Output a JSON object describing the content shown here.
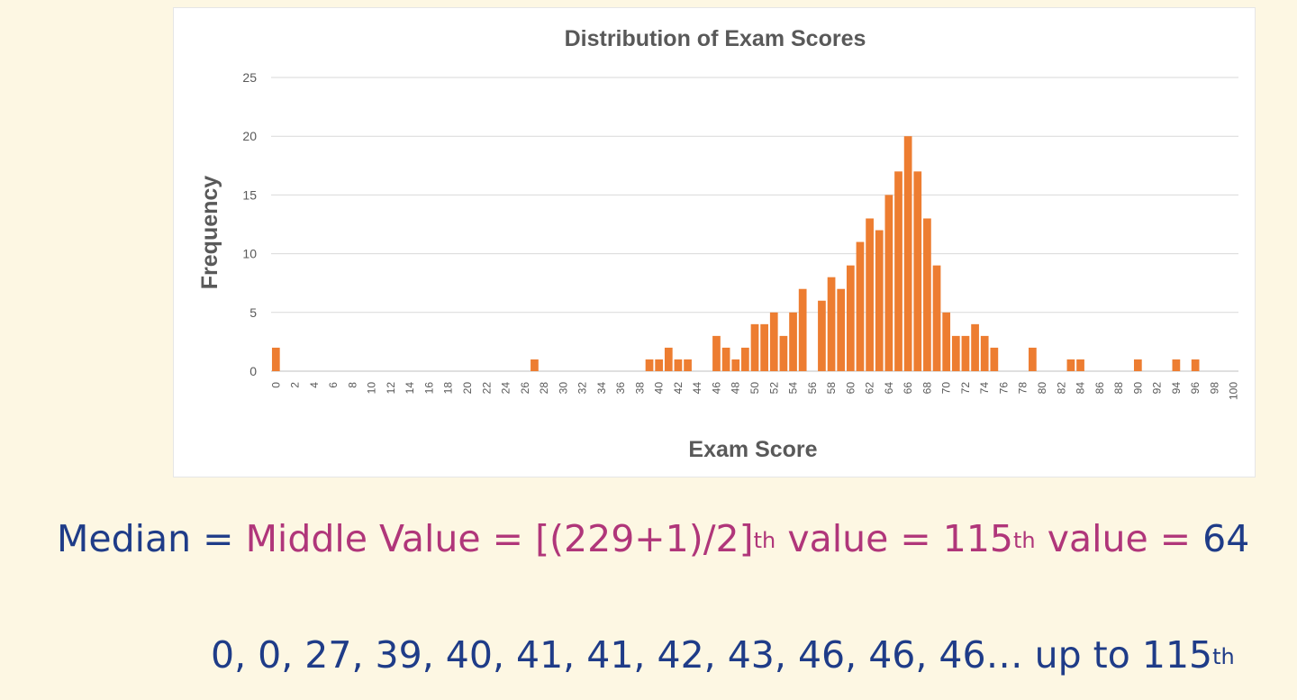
{
  "chart_data": {
    "type": "bar",
    "title": "Distribution of Exam Scores",
    "xlabel": "Exam Score",
    "ylabel": "Frequency",
    "ylim": [
      0,
      25
    ],
    "yticks": [
      0,
      5,
      10,
      15,
      20,
      25
    ],
    "xlim": [
      0,
      100
    ],
    "xtick_labels": [
      "0",
      "2",
      "4",
      "6",
      "8",
      "10",
      "12",
      "14",
      "16",
      "18",
      "20",
      "22",
      "24",
      "26",
      "28",
      "30",
      "32",
      "34",
      "36",
      "38",
      "40",
      "42",
      "44",
      "46",
      "48",
      "50",
      "52",
      "54",
      "56",
      "58",
      "60",
      "62",
      "64",
      "66",
      "68",
      "70",
      "72",
      "74",
      "76",
      "78",
      "80",
      "82",
      "84",
      "86",
      "88",
      "90",
      "92",
      "94",
      "96",
      "98",
      "100"
    ],
    "grid": "horizontal",
    "bar_color": "#ed7d31",
    "x": [
      0,
      27,
      39,
      40,
      41,
      42,
      43,
      46,
      47,
      48,
      49,
      50,
      51,
      52,
      53,
      54,
      55,
      57,
      58,
      59,
      60,
      61,
      62,
      63,
      64,
      65,
      66,
      67,
      68,
      69,
      70,
      71,
      72,
      73,
      74,
      75,
      79,
      83,
      84,
      90,
      94,
      96
    ],
    "values": [
      2,
      1,
      1,
      1,
      2,
      1,
      1,
      3,
      2,
      1,
      2,
      4,
      4,
      5,
      3,
      5,
      7,
      6,
      8,
      7,
      9,
      11,
      13,
      12,
      15,
      17,
      20,
      17,
      13,
      9,
      5,
      3,
      3,
      4,
      3,
      2,
      2,
      1,
      1,
      1,
      1,
      1
    ]
  },
  "caption": {
    "line1": {
      "median": "Median =",
      "middle_value": "Middle Value =",
      "formula": "[(229+1)/2]",
      "formula_sup": "th",
      "value_text": "value =",
      "position": "115",
      "position_sup": "th",
      "value_text2": "value =",
      "result": "64"
    },
    "line2": {
      "text": "0, 0, 27, 39, 40, 41, 41, 42, 43, 46, 46, 46… up to 115",
      "sup": "th"
    },
    "colors": {
      "blue": "#1f3c88",
      "magenta": "#b0367a"
    }
  }
}
